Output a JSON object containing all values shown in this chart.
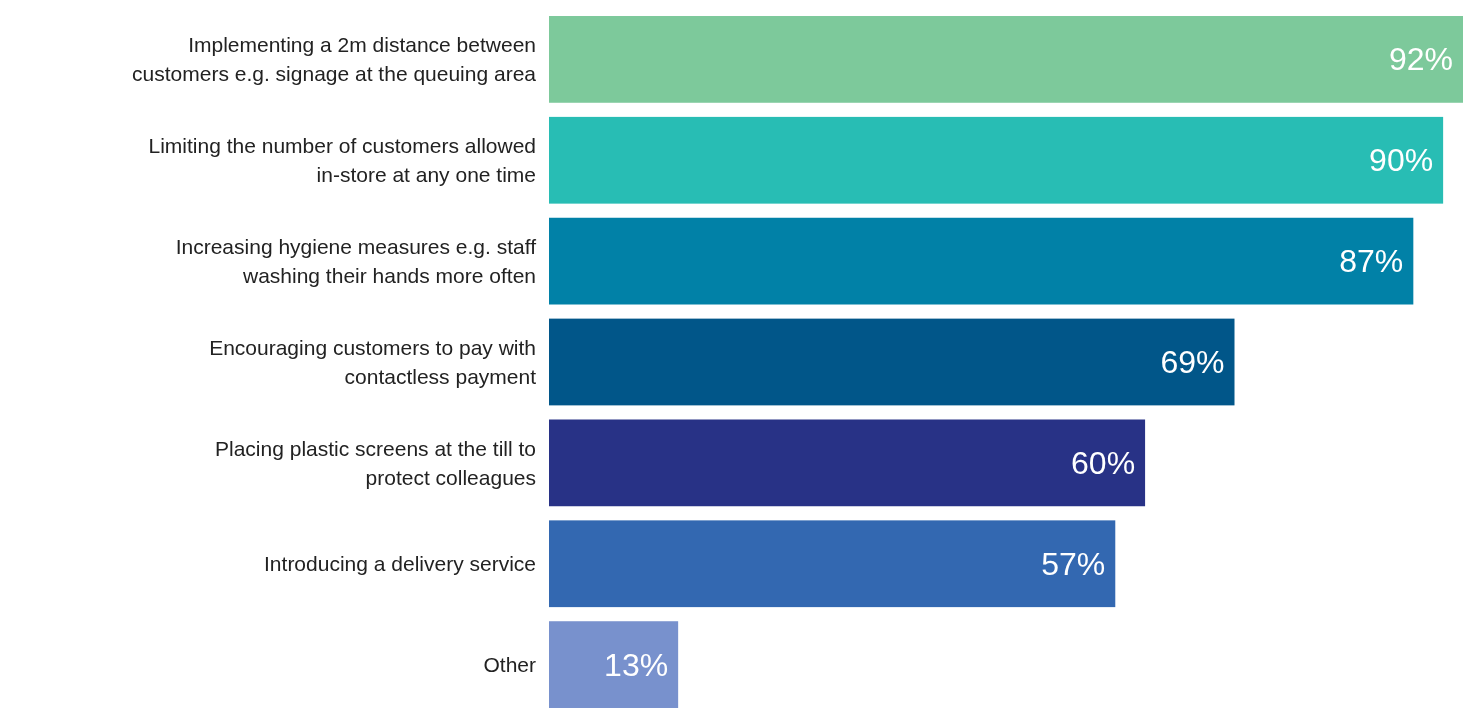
{
  "chart_data": {
    "type": "bar",
    "orientation": "horizontal",
    "value_labels": [
      "92%",
      "90%",
      "87%",
      "69%",
      "60%",
      "57%",
      "13%"
    ],
    "categories": [
      "Implementing a 2m distance between customers e.g. signage at the queuing area",
      "Limiting the number of customers allowed in-store at any one time",
      "Increasing hygiene measures e.g. staff washing their hands more often",
      "Encouraging customers to pay with contactless payment",
      "Placing plastic screens at the till to protect colleagues",
      "Introducing a delivery service",
      "Other"
    ],
    "values": [
      92,
      90,
      87,
      69,
      60,
      57,
      13
    ],
    "colors": [
      "#7dc99b",
      "#28bdb4",
      "#0181a7",
      "#015689",
      "#283286",
      "#3368b1",
      "#7891cd"
    ]
  }
}
